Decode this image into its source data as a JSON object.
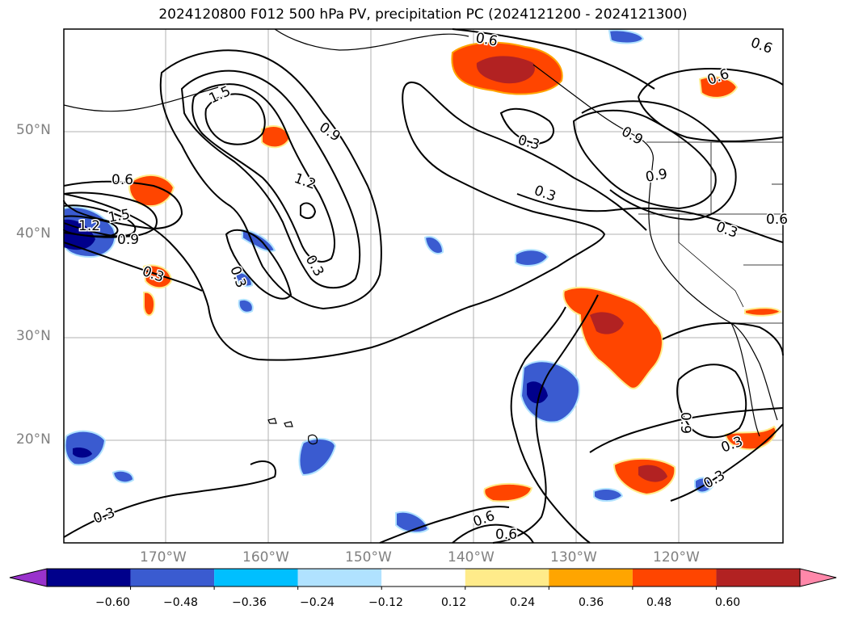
{
  "title": "2024120800 F012 500 hPa PV, precipitation PC (2024121200 - 2024121300)",
  "map": {
    "lat_labels": [
      "50°N",
      "40°N",
      "30°N",
      "20°N"
    ],
    "lon_labels": [
      "170°W",
      "160°W",
      "150°W",
      "140°W",
      "130°W",
      "120°W"
    ],
    "contour_labels": [
      "0.6",
      "1.5",
      "0.6",
      "1.2",
      "0.9",
      "0.3",
      "0.6",
      "1.5",
      "1.2",
      "0.9",
      "0.3",
      "0.3",
      "0.3",
      "0.9",
      "0.3",
      "0.3",
      "0.6",
      "0.9",
      "0.3",
      "0.6",
      "0.3",
      "0.6",
      "0.3",
      "0.6",
      "0.9"
    ]
  },
  "colorbar": {
    "ticks": [
      "−0.60",
      "−0.48",
      "−0.36",
      "−0.24",
      "−0.12",
      "0.12",
      "0.24",
      "0.36",
      "0.48",
      "0.60"
    ],
    "colors": [
      "#9932cc",
      "#00008b",
      "#3a5bd0",
      "#00bfff",
      "#b0e2ff",
      "#ffffff",
      "#ffeb8a",
      "#ffa500",
      "#ff4500",
      "#b22222",
      "#ff88aa"
    ]
  }
}
